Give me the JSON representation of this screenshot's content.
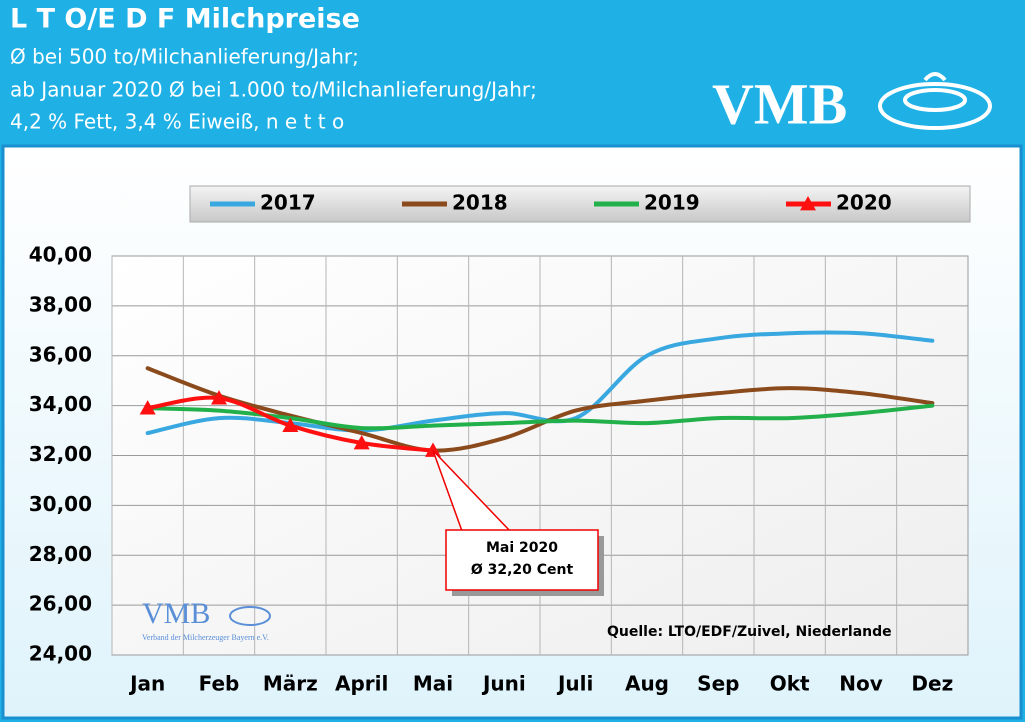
{
  "chart_data": {
    "type": "line",
    "title": "L T O/E D F Milchpreise",
    "subtitle": [
      "Ø bei 500 to/Milchanlieferung/Jahr;",
      "ab Januar 2020 Ø bei 1.000 to/Milchanlieferung/Jahr;",
      "4,2 % Fett, 3,4 % Eiweiß, n e t t o"
    ],
    "logo": "VMB",
    "logo_caption": "Verband der Milcherzeuger Bayern e.V.",
    "categories": [
      "Jan",
      "Feb",
      "März",
      "April",
      "Mai",
      "Juni",
      "Juli",
      "Aug",
      "Sep",
      "Okt",
      "Nov",
      "Dez"
    ],
    "series": [
      {
        "name": "2017",
        "color": "#3aa8e0",
        "values": [
          32.9,
          33.5,
          33.3,
          33.0,
          33.4,
          33.7,
          33.5,
          36.0,
          36.7,
          36.9,
          36.9,
          36.6
        ]
      },
      {
        "name": "2018",
        "color": "#8b4a1c",
        "values": [
          35.5,
          34.4,
          33.6,
          32.9,
          32.2,
          32.7,
          33.8,
          34.2,
          34.5,
          34.7,
          34.5,
          34.1
        ]
      },
      {
        "name": "2019",
        "color": "#22b04a",
        "values": [
          33.9,
          33.8,
          33.5,
          33.1,
          33.2,
          33.3,
          33.4,
          33.3,
          33.5,
          33.5,
          33.7,
          34.0
        ]
      },
      {
        "name": "2020",
        "color": "#ff1010",
        "marker": "triangle",
        "values": [
          33.9,
          34.3,
          33.2,
          32.5,
          32.2,
          null,
          null,
          null,
          null,
          null,
          null,
          null
        ]
      }
    ],
    "ylim": [
      24,
      40
    ],
    "yticks": [
      {
        "value": 24,
        "label": "24,00"
      },
      {
        "value": 26,
        "label": "26,00"
      },
      {
        "value": 28,
        "label": "28,00"
      },
      {
        "value": 30,
        "label": "30,00"
      },
      {
        "value": 32,
        "label": "32,00"
      },
      {
        "value": 34,
        "label": "34,00"
      },
      {
        "value": 36,
        "label": "36,00"
      },
      {
        "value": 38,
        "label": "38,00"
      },
      {
        "value": 40,
        "label": "40,00"
      }
    ],
    "grid": true,
    "annotation": {
      "lines": [
        "Mai 2020",
        "Ø 32,20 Cent"
      ],
      "series": 3,
      "index": 4
    },
    "source": "Quelle: LTO/EDF/Zuivel, Niederlande"
  }
}
